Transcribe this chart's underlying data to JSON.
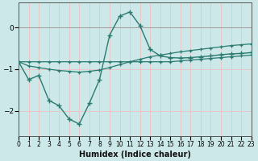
{
  "xlabel": "Humidex (Indice chaleur)",
  "ylabel": "",
  "background_color": "#cce8e8",
  "grid_color": "#e8c8c8",
  "line_color": "#2a7a70",
  "x_data": [
    0,
    1,
    2,
    3,
    4,
    5,
    6,
    7,
    8,
    9,
    10,
    11,
    12,
    13,
    14,
    15,
    16,
    17,
    18,
    19,
    20,
    21,
    22,
    23
  ],
  "y_curve1": [
    -0.82,
    -1.25,
    -1.15,
    -1.75,
    -1.88,
    -2.2,
    -2.32,
    -1.82,
    -1.25,
    -0.18,
    0.28,
    0.38,
    0.05,
    -0.52,
    -0.68,
    -0.72,
    -0.73,
    -0.72,
    -0.7,
    -0.68,
    -0.65,
    -0.63,
    -0.62,
    -0.6
  ],
  "y_line1": [
    -0.82,
    -0.82,
    -0.82,
    -0.82,
    -0.82,
    -0.82,
    -0.82,
    -0.82,
    -0.82,
    -0.82,
    -0.82,
    -0.82,
    -0.82,
    -0.82,
    -0.82,
    -0.82,
    -0.8,
    -0.78,
    -0.76,
    -0.74,
    -0.72,
    -0.7,
    -0.68,
    -0.66
  ],
  "y_line2": [
    -0.82,
    -0.92,
    -0.96,
    -1.0,
    -1.03,
    -1.05,
    -1.07,
    -1.05,
    -1.02,
    -0.96,
    -0.89,
    -0.82,
    -0.76,
    -0.7,
    -0.66,
    -0.62,
    -0.58,
    -0.55,
    -0.52,
    -0.49,
    -0.46,
    -0.43,
    -0.41,
    -0.39
  ],
  "ylim": [
    -2.6,
    0.6
  ],
  "yticks": [
    -2,
    -1,
    0
  ],
  "xlim": [
    0,
    23
  ],
  "xticks": [
    0,
    1,
    2,
    3,
    4,
    5,
    6,
    7,
    8,
    9,
    10,
    11,
    12,
    13,
    14,
    15,
    16,
    17,
    18,
    19,
    20,
    21,
    22,
    23
  ],
  "tick_fontsize": 5.5,
  "xlabel_fontsize": 7,
  "ylabel_fontsize": 7,
  "spine_color": "#555555",
  "axline_color": "#888888"
}
